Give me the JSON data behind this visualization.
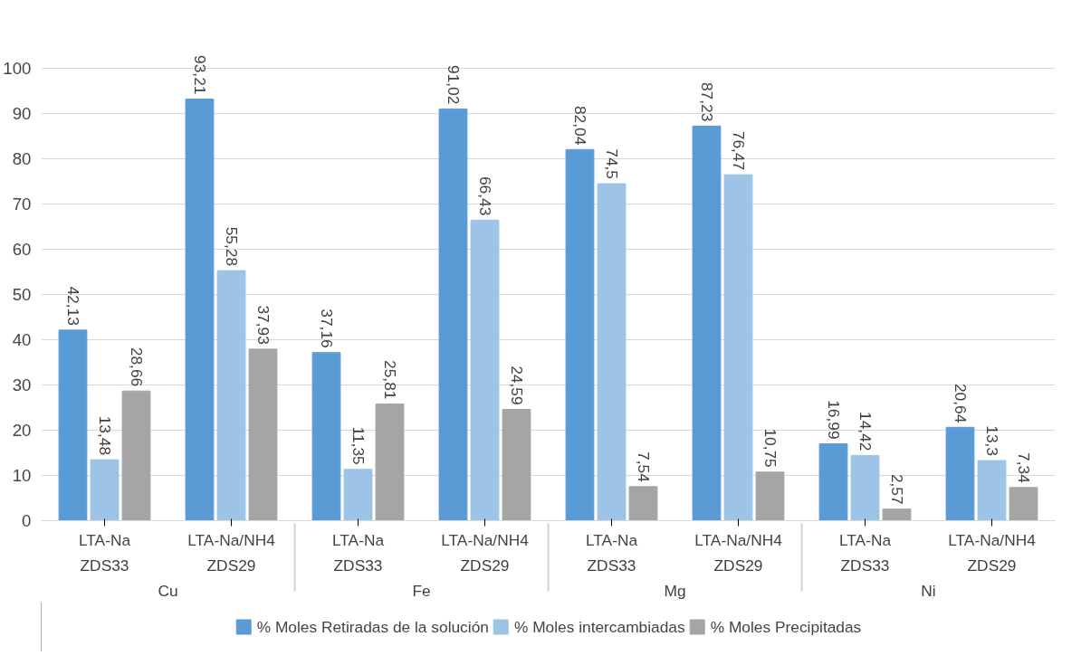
{
  "chart_data": {
    "type": "bar",
    "categories": [
      [
        "Cu",
        "ZDS33",
        "LTA-Na"
      ],
      [
        null,
        "ZDS29",
        "LTA-Na/NH4"
      ],
      [
        "Fe",
        "ZDS33",
        "LTA-Na"
      ],
      [
        null,
        "ZDS29",
        "LTA-Na/NH4"
      ],
      [
        "Mg",
        "ZDS33",
        "LTA-Na"
      ],
      [
        null,
        "ZDS29",
        "LTA-Na/NH4"
      ],
      [
        "Ni",
        "ZDS33",
        "LTA-Na"
      ],
      [
        null,
        "ZDS29",
        "LTA-Na/NH4"
      ]
    ],
    "series": [
      {
        "name": "% Moles Retiradas de la solución",
        "color": "#5b9bd5",
        "values": [
          42.13,
          93.21,
          37.16,
          91.02,
          82.04,
          87.23,
          16.99,
          20.64
        ],
        "value_labels": [
          "42,13",
          "93,21",
          "37,16",
          "91,02",
          "82,04",
          "87,23",
          "16,99",
          "20,64"
        ]
      },
      {
        "name": "% Moles intercambiadas",
        "color": "#9dc3e6",
        "values": [
          13.48,
          55.28,
          11.35,
          66.43,
          74.5,
          76.47,
          14.42,
          13.3
        ],
        "value_labels": [
          "13,48",
          "55,28",
          "11,35",
          "66,43",
          "74,5",
          "76,47",
          "14,42",
          "13,3"
        ]
      },
      {
        "name": "% Moles Precipitadas",
        "color": "#a5a5a5",
        "values": [
          28.66,
          37.93,
          25.81,
          24.59,
          7.54,
          10.75,
          2.57,
          7.34
        ],
        "value_labels": [
          "28,66",
          "37,93",
          "25,81",
          "24,59",
          "7,54",
          "10,75",
          "2,57",
          "7,34"
        ]
      }
    ],
    "ylim": [
      0,
      100
    ],
    "yticks": [
      0,
      10,
      20,
      30,
      40,
      50,
      60,
      70,
      80,
      90,
      100
    ],
    "grid": "y",
    "legend": "bottom"
  }
}
